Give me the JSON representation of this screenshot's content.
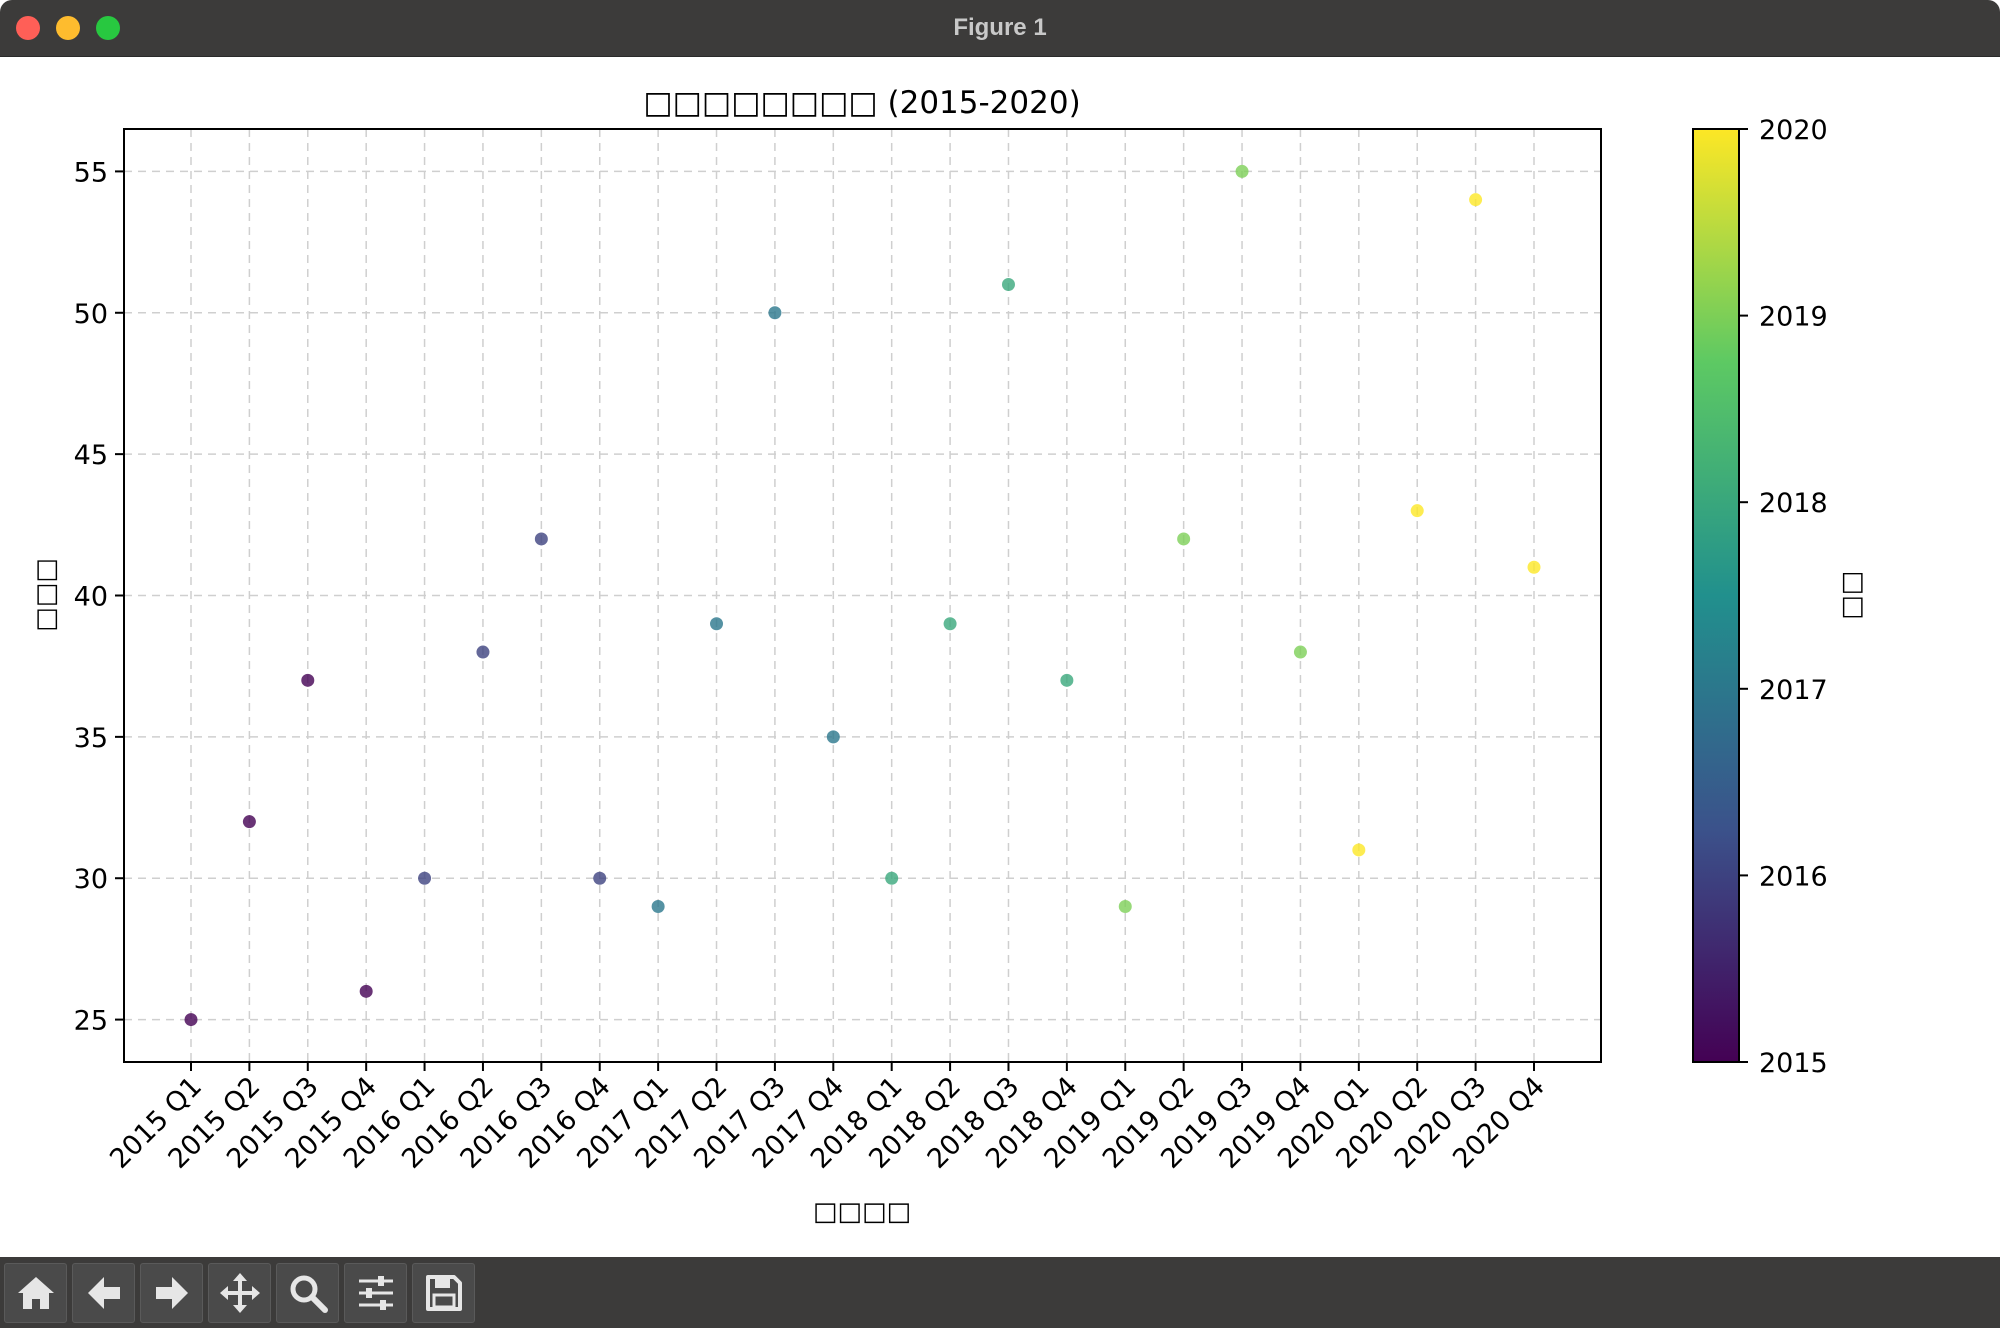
{
  "window": {
    "title": "Figure 1"
  },
  "toolbar": {
    "buttons": [
      {
        "name": "home",
        "icon": "home-icon"
      },
      {
        "name": "back",
        "icon": "arrow-left-icon"
      },
      {
        "name": "forward",
        "icon": "arrow-right-icon"
      },
      {
        "name": "pan",
        "icon": "move-icon"
      },
      {
        "name": "zoom",
        "icon": "magnifier-icon"
      },
      {
        "name": "configure",
        "icon": "sliders-icon"
      },
      {
        "name": "save",
        "icon": "floppy-disk-icon"
      }
    ]
  },
  "chart_data": {
    "type": "scatter",
    "title": "□□□□□□□□ (2015-2020)",
    "xlabel": "□□□□",
    "ylabel": "□□□",
    "colorbar_label": "□□",
    "categories": [
      "2015 Q1",
      "2015 Q2",
      "2015 Q3",
      "2015 Q4",
      "2016 Q1",
      "2016 Q2",
      "2016 Q3",
      "2016 Q4",
      "2017 Q1",
      "2017 Q2",
      "2017 Q3",
      "2017 Q4",
      "2018 Q1",
      "2018 Q2",
      "2018 Q3",
      "2018 Q4",
      "2019 Q1",
      "2019 Q2",
      "2019 Q3",
      "2019 Q4",
      "2020 Q1",
      "2020 Q2",
      "2020 Q3",
      "2020 Q4"
    ],
    "values": [
      25,
      32,
      37,
      26,
      30,
      38,
      42,
      30,
      29,
      39,
      50,
      35,
      30,
      39,
      51,
      37,
      29,
      42,
      55,
      38,
      31,
      43,
      54,
      41
    ],
    "color_values": [
      2015,
      2015,
      2015,
      2015,
      2016,
      2016,
      2016,
      2016,
      2017,
      2017,
      2017,
      2017,
      2018,
      2018,
      2018,
      2018,
      2019,
      2019,
      2019,
      2019,
      2020,
      2020,
      2020,
      2020
    ],
    "ylim": [
      23.5,
      56.5
    ],
    "yticks": [
      25,
      30,
      35,
      40,
      45,
      50,
      55
    ],
    "colorbar_range": [
      2015,
      2020
    ],
    "colorbar_ticks": [
      2015,
      2016,
      2017,
      2018,
      2019,
      2020
    ],
    "colormap": "viridis",
    "grid": true,
    "grid_style": "dashed",
    "legend": "colorbar-right"
  }
}
